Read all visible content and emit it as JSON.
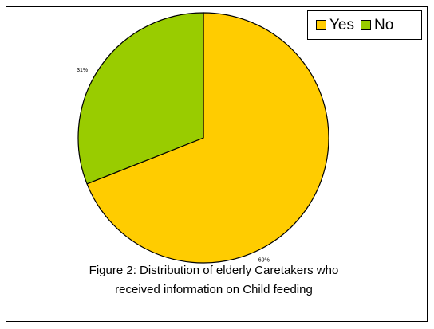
{
  "chart_data": {
    "type": "pie",
    "categories": [
      "Yes",
      "No"
    ],
    "values": [
      69,
      31
    ],
    "data_labels": [
      "69%",
      "31%"
    ],
    "colors": [
      "#ffcc00",
      "#99cc00"
    ],
    "legend_placement": "top-right"
  },
  "legend": [
    {
      "label": "Yes",
      "color": "#ffcc00"
    },
    {
      "label": "No",
      "color": "#99cc00"
    }
  ],
  "caption": {
    "line1": "Figure 2:  Distribution of elderly Caretakers who",
    "line2": "received information on Child feeding"
  }
}
